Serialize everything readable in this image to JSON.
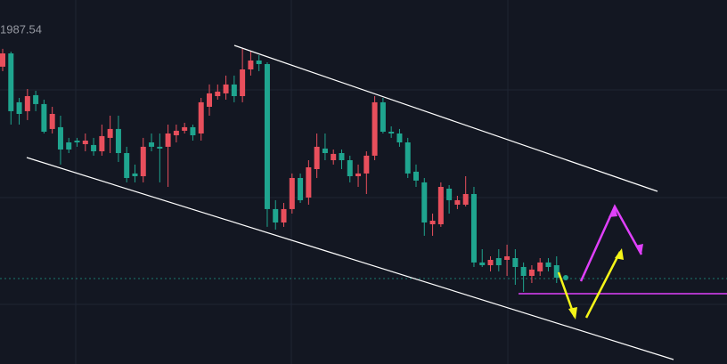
{
  "chart_data": {
    "type": "candlestick",
    "annotation": "1987.54",
    "ylim": [
      1959.325,
      1990
    ],
    "up_color": "#e84f5c",
    "down_color": "#1fa58f",
    "open": [
      1984.38,
      1985.5,
      1981.38,
      1980.63,
      1981.98,
      1981.23,
      1979.13,
      1979.28,
      1978,
      1978.15,
      1977.85,
      1977.78,
      1977.25,
      1978.38,
      1979.13,
      1977.1,
      1975.38,
      1975.15,
      1978,
      1977.63,
      1977.63,
      1978.6,
      1978.98,
      1979.28,
      1978.75,
      1981,
      1981.9,
      1982.13,
      1982.88,
      1981.9,
      1984.15,
      1984.9,
      1984.6,
      1972.38,
      1971.25,
      1972.38,
      1975,
      1973.35,
      1975.75,
      1977.48,
      1976.5,
      1977.1,
      1976.5,
      1975.15,
      1975.38,
      1976.88,
      1981.38,
      1978.9,
      1978.75,
      1978,
      1975.53,
      1974.63,
      1971.1,
      1971.1,
      1974.1,
      1972.75,
      1972.75,
      1973.65,
      1967.88,
      1967.65,
      1968.25,
      1968.1,
      1968.25,
      1967.5,
      1966.75,
      1967.13,
      1967.88,
      1967.65
    ],
    "high": [
      1985.88,
      1985.65,
      1981.75,
      1982.5,
      1982.35,
      1981.6,
      1981,
      1980.25,
      1978.38,
      1978.38,
      1978.75,
      1978.38,
      1979.5,
      1980.25,
      1980.25,
      1977.63,
      1976.13,
      1978.38,
      1978.75,
      1978.75,
      1979.5,
      1979.5,
      1979.65,
      1979.5,
      1981.75,
      1982.88,
      1982.88,
      1983.63,
      1983.63,
      1985.88,
      1985.65,
      1985.35,
      1984.75,
      1973.13,
      1972.9,
      1975.38,
      1975.38,
      1976.5,
      1978.75,
      1978.75,
      1977.4,
      1977.4,
      1976.88,
      1976.13,
      1977.25,
      1981.9,
      1981.75,
      1979.35,
      1979.13,
      1978.38,
      1976.13,
      1975,
      1972,
      1974.63,
      1974.4,
      1973.5,
      1975.15,
      1974.25,
      1969,
      1968.4,
      1969,
      1969.38,
      1969,
      1967.88,
      1967.65,
      1968.25,
      1968.25,
      1968.4
    ],
    "low": [
      1984,
      1979.5,
      1979.5,
      1979.88,
      1980.63,
      1978.75,
      1978.75,
      1976.13,
      1977.1,
      1977.63,
      1977.25,
      1976.88,
      1976.88,
      1977.1,
      1976.35,
      1974.63,
      1974.63,
      1974.63,
      1977.25,
      1974.63,
      1974.25,
      1978,
      1978.75,
      1978.15,
      1978.15,
      1980.25,
      1981.6,
      1981.6,
      1981.38,
      1981.38,
      1983.63,
      1984,
      1970.88,
      1970.65,
      1970.88,
      1972,
      1972.9,
      1972.75,
      1975,
      1976.5,
      1976.13,
      1975.75,
      1974.63,
      1974.25,
      1973.65,
      1976.5,
      1978.75,
      1978.38,
      1977.63,
      1975,
      1974.25,
      1970.13,
      1970.13,
      1970.88,
      1972,
      1972.38,
      1972.6,
      1967.5,
      1967.5,
      1967.13,
      1967.13,
      1966.75,
      1966,
      1965.4,
      1966.15,
      1966.75,
      1967.13,
      1966.15
    ],
    "close": [
      1985.5,
      1980.63,
      1980.4,
      1981.9,
      1981.23,
      1978.9,
      1980.4,
      1977.4,
      1977.4,
      1978,
      1978.15,
      1977.25,
      1978.53,
      1979.13,
      1977.1,
      1975,
      1975.15,
      1977.63,
      1977.63,
      1977.48,
      1978.75,
      1978.98,
      1979.28,
      1978.6,
      1981.38,
      1982.13,
      1982.28,
      1982.88,
      1981.9,
      1984.15,
      1984.9,
      1984.6,
      1972.38,
      1971.25,
      1972.38,
      1975,
      1973.13,
      1975.9,
      1977.63,
      1977.1,
      1977.03,
      1976.5,
      1975.15,
      1975.38,
      1976.88,
      1981.38,
      1978.9,
      1978.75,
      1978,
      1975.38,
      1974.78,
      1971.25,
      1971.4,
      1974.25,
      1973.13,
      1973.13,
      1973.65,
      1967.88,
      1967.65,
      1968.1,
      1967.65,
      1968.4,
      1967.5,
      1966.75,
      1967.28,
      1967.88,
      1967.5,
      1966.6
    ]
  }
}
